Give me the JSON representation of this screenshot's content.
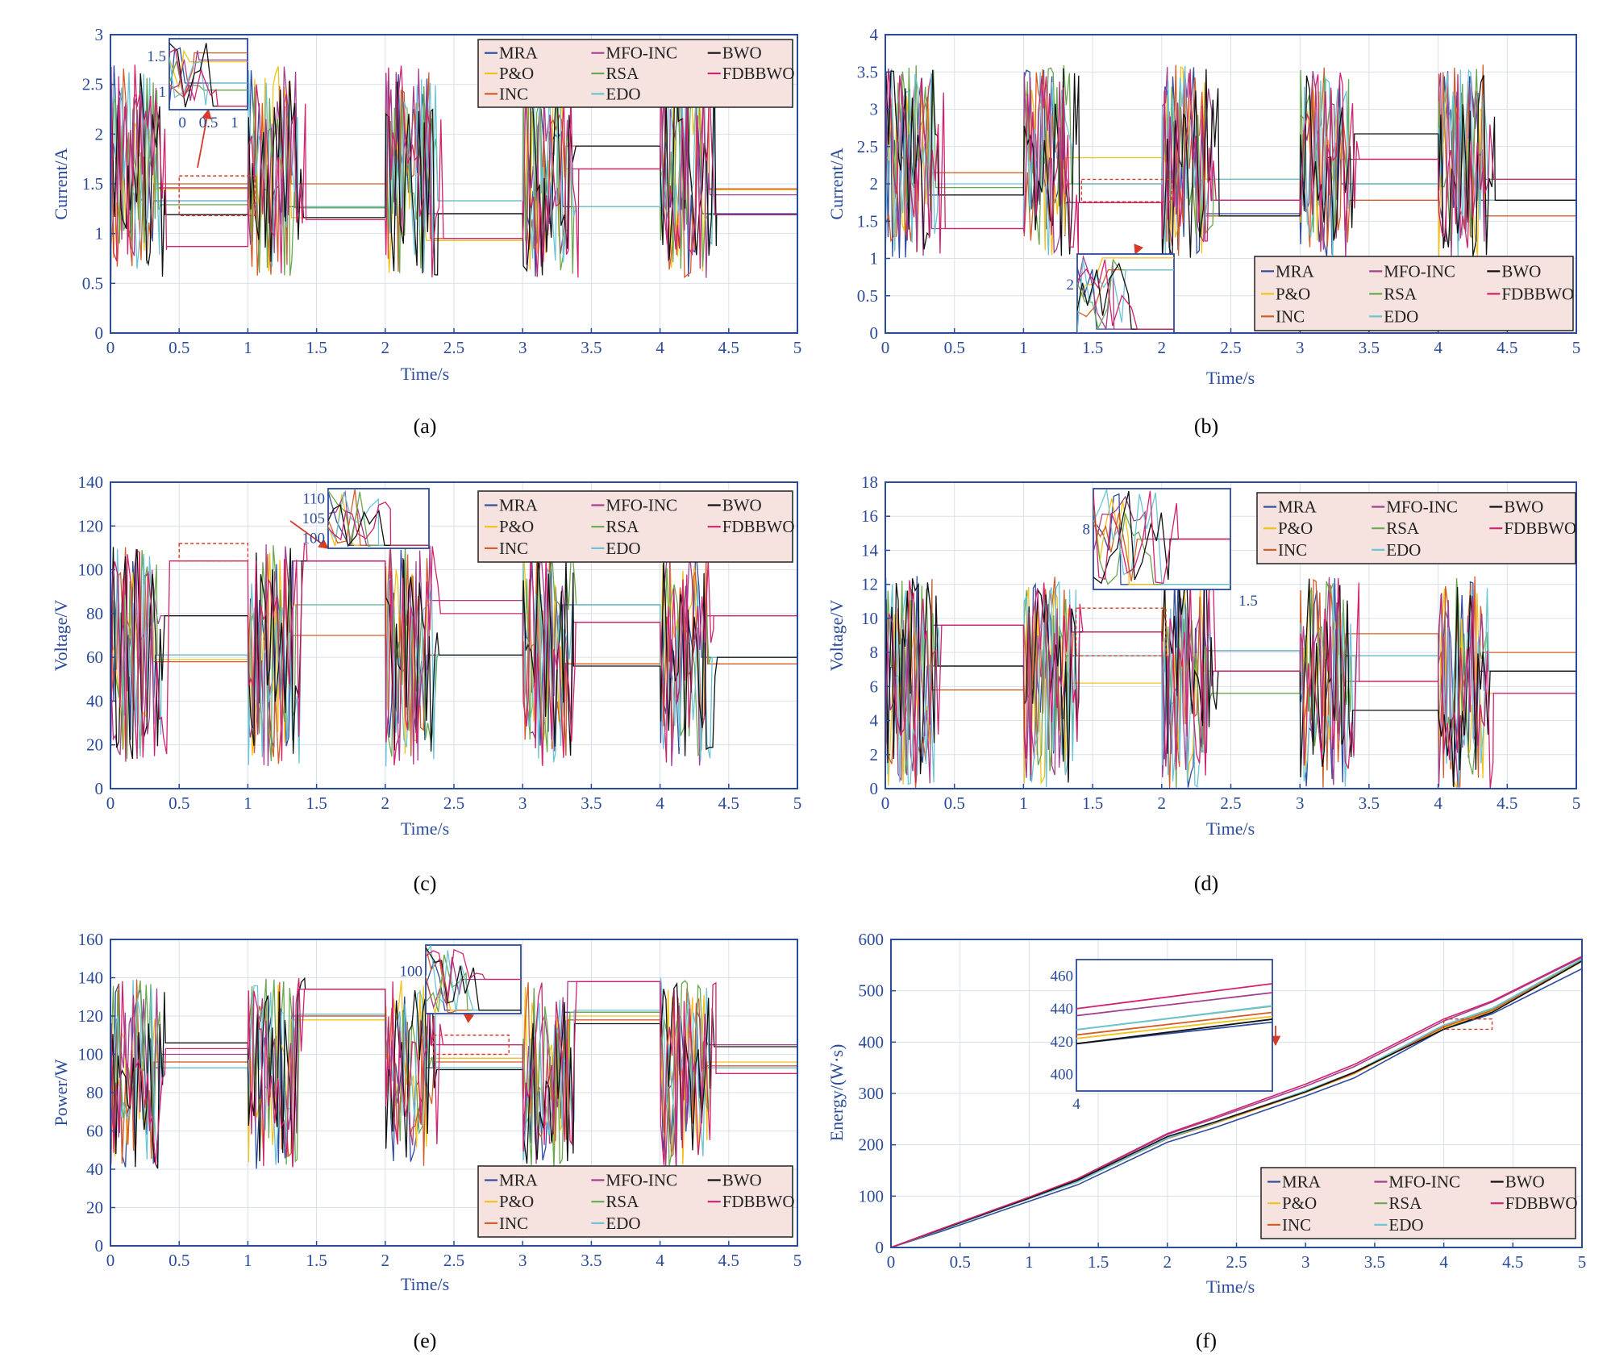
{
  "colors": {
    "axis": "#2a4a9a",
    "grid": "#d9e0ee",
    "legend_bg": "#f6e3df",
    "arrow": "#d83a28",
    "MRA": "#2f4c9e",
    "P&O": "#f2c21b",
    "INC": "#d35c27",
    "MFO-INC": "#a33f8f",
    "RSA": "#6aa84f",
    "EDO": "#6cc4d6",
    "BWO": "#111111",
    "FDBBWO": "#d1226f"
  },
  "legend": {
    "col1": [
      "MRA",
      "P&O",
      "INC"
    ],
    "col2": [
      "MFO-INC",
      "RSA",
      "EDO"
    ],
    "col3": [
      "BWO",
      "FDBBWO"
    ]
  },
  "chart_data": [
    {
      "id": "a",
      "caption": "(a)",
      "type": "line",
      "ylabel": "Current/A",
      "xlabel": "Time/s",
      "xlim": [
        0,
        5
      ],
      "ylim": [
        0,
        3
      ],
      "xticks": [
        "0",
        "0.5",
        "1",
        "1.5",
        "2",
        "2.5",
        "3",
        "3.5",
        "4",
        "4.5",
        "5"
      ],
      "yticks": [
        "0",
        "0.5",
        "1",
        "1.5",
        "2",
        "2.5",
        "3"
      ],
      "osc_range": [
        0.55,
        2.7
      ],
      "legend_pos": "top-right",
      "inset": {
        "xticks": [
          "0",
          "0.5",
          "1"
        ],
        "yticks": [
          "1",
          "1.5"
        ],
        "pos": "top-left"
      },
      "series": [
        {
          "name": "MRA",
          "steady": [
            1.33,
            1.27,
            1.2,
            1.27,
            1.2
          ]
        },
        {
          "name": "P&O",
          "steady": [
            1.45,
            1.16,
            0.93,
            1.65,
            1.44
          ]
        },
        {
          "name": "INC",
          "steady": [
            1.5,
            1.5,
            0.95,
            1.88,
            1.45
          ]
        },
        {
          "name": "MFO-INC",
          "steady": [
            1.46,
            1.26,
            1.2,
            1.65,
            1.39
          ]
        },
        {
          "name": "RSA",
          "steady": [
            1.29,
            1.26,
            1.33,
            1.27,
            1.19
          ]
        },
        {
          "name": "EDO",
          "steady": [
            1.33,
            1.27,
            1.33,
            1.27,
            1.19
          ]
        },
        {
          "name": "BWO",
          "steady": [
            1.19,
            1.16,
            1.2,
            1.88,
            1.19
          ]
        },
        {
          "name": "FDBBWO",
          "steady": [
            0.87,
            1.14,
            0.95,
            1.65,
            1.19
          ]
        }
      ]
    },
    {
      "id": "b",
      "caption": "(b)",
      "type": "line",
      "ylabel": "Current/A",
      "xlabel": "Time/s",
      "xlim": [
        0,
        5
      ],
      "ylim": [
        0,
        4
      ],
      "xticks": [
        "0",
        "0.5",
        "1",
        "1.5",
        "2",
        "2.5",
        "3",
        "3.5",
        "4",
        "4.5",
        "5"
      ],
      "yticks": [
        "0",
        "0.5",
        "1",
        "1.5",
        "2",
        "2.5",
        "3",
        "3.5",
        "4"
      ],
      "osc_range": [
        1.0,
        3.6
      ],
      "legend_pos": "bottom-right",
      "inset": {
        "xticks": [],
        "yticks": [
          "2"
        ],
        "pos": "bottom-center"
      },
      "series": [
        {
          "name": "MRA",
          "steady": [
            1.85,
            1.75,
            1.6,
            2.0,
            1.78
          ]
        },
        {
          "name": "P&O",
          "steady": [
            2.15,
            2.35,
            2.06,
            2.33,
            1.78
          ]
        },
        {
          "name": "INC",
          "steady": [
            2.15,
            2.0,
            1.57,
            1.78,
            1.57
          ]
        },
        {
          "name": "MFO-INC",
          "steady": [
            1.4,
            1.75,
            1.78,
            2.33,
            1.78
          ]
        },
        {
          "name": "RSA",
          "steady": [
            1.95,
            2.0,
            2.06,
            2.0,
            2.06
          ]
        },
        {
          "name": "EDO",
          "steady": [
            2.0,
            2.0,
            2.06,
            2.0,
            1.78
          ]
        },
        {
          "name": "BWO",
          "steady": [
            1.85,
            1.75,
            1.57,
            2.67,
            1.78
          ]
        },
        {
          "name": "FDBBWO",
          "steady": [
            1.4,
            1.75,
            1.78,
            2.33,
            2.06
          ]
        }
      ]
    },
    {
      "id": "c",
      "caption": "(c)",
      "type": "line",
      "ylabel": "Voltage/V",
      "xlabel": "Time/s",
      "xlim": [
        0,
        5
      ],
      "ylim": [
        0,
        140
      ],
      "xticks": [
        "0",
        "0.5",
        "1",
        "1.5",
        "2",
        "2.5",
        "3",
        "3.5",
        "4",
        "4.5",
        "5"
      ],
      "yticks": [
        "0",
        "20",
        "40",
        "60",
        "80",
        "100",
        "120",
        "140"
      ],
      "osc_range": [
        10,
        112
      ],
      "legend_pos": "top-right",
      "inset": {
        "xticks": [],
        "yticks": [
          "100",
          "105",
          "110"
        ],
        "pos": "top-center"
      },
      "series": [
        {
          "name": "MRA",
          "steady": [
            61,
            104,
            61,
            84,
            60
          ]
        },
        {
          "name": "P&O",
          "steady": [
            59,
            84,
            86,
            57,
            79
          ]
        },
        {
          "name": "INC",
          "steady": [
            58,
            70,
            61,
            57,
            57
          ]
        },
        {
          "name": "MFO-INC",
          "steady": [
            79,
            104,
            86,
            76,
            79
          ]
        },
        {
          "name": "RSA",
          "steady": [
            61,
            84,
            61,
            84,
            60
          ]
        },
        {
          "name": "EDO",
          "steady": [
            61,
            84,
            61,
            84,
            60
          ]
        },
        {
          "name": "BWO",
          "steady": [
            79,
            104,
            61,
            56,
            60
          ]
        },
        {
          "name": "FDBBWO",
          "steady": [
            104,
            104,
            80,
            76,
            79
          ]
        }
      ]
    },
    {
      "id": "d",
      "caption": "(d)",
      "type": "line",
      "ylabel": "Voltage/V",
      "xlabel": "Time/s",
      "xlim": [
        0,
        5
      ],
      "ylim": [
        0,
        18
      ],
      "xticks": [
        "0",
        "0.5",
        "1",
        "1.5",
        "2",
        "2.5",
        "3",
        "3.5",
        "4",
        "4.5",
        "5"
      ],
      "yticks": [
        "0",
        "2",
        "4",
        "6",
        "8",
        "10",
        "12",
        "14",
        "16",
        "18"
      ],
      "osc_range": [
        0,
        12.5
      ],
      "legend_pos": "top-right",
      "inset": {
        "xticks": [
          "1.5"
        ],
        "yticks": [
          "8"
        ],
        "pos": "top-center"
      },
      "series": [
        {
          "name": "MRA",
          "steady": [
            7.2,
            7.8,
            8.1,
            7.8,
            6.9
          ]
        },
        {
          "name": "P&O",
          "steady": [
            5.8,
            6.2,
            6.9,
            6.3,
            5.6
          ]
        },
        {
          "name": "INC",
          "steady": [
            5.8,
            9.2,
            8.1,
            9.1,
            8.0
          ]
        },
        {
          "name": "MFO-INC",
          "steady": [
            9.6,
            9.2,
            6.9,
            6.3,
            6.9
          ]
        },
        {
          "name": "RSA",
          "steady": [
            7.2,
            7.8,
            5.6,
            7.8,
            6.9
          ]
        },
        {
          "name": "EDO",
          "steady": [
            7.2,
            7.8,
            8.1,
            7.8,
            6.9
          ]
        },
        {
          "name": "BWO",
          "steady": [
            7.2,
            9.2,
            6.9,
            4.6,
            6.9
          ]
        },
        {
          "name": "FDBBWO",
          "steady": [
            9.6,
            9.2,
            6.9,
            6.3,
            5.6
          ]
        }
      ]
    },
    {
      "id": "e",
      "caption": "(e)",
      "type": "line",
      "ylabel": "Power/W",
      "xlabel": "Time/s",
      "xlim": [
        0,
        5
      ],
      "ylim": [
        0,
        160
      ],
      "xticks": [
        "0",
        "0.5",
        "1",
        "1.5",
        "2",
        "2.5",
        "3",
        "3.5",
        "4",
        "4.5",
        "5"
      ],
      "yticks": [
        "0",
        "20",
        "40",
        "60",
        "80",
        "100",
        "120",
        "140",
        "160"
      ],
      "osc_range": [
        40,
        140
      ],
      "legend_pos": "bottom-right",
      "inset": {
        "xticks": [],
        "yticks": [
          "100"
        ],
        "pos": "top-center"
      },
      "series": [
        {
          "name": "MRA",
          "steady": [
            93,
            120,
            93,
            122,
            93
          ]
        },
        {
          "name": "P&O",
          "steady": [
            96,
            118,
            98,
            120,
            96
          ]
        },
        {
          "name": "INC",
          "steady": [
            96,
            120,
            96,
            118,
            94
          ]
        },
        {
          "name": "MFO-INC",
          "steady": [
            100,
            134,
            105,
            138,
            105
          ]
        },
        {
          "name": "RSA",
          "steady": [
            93,
            121,
            93,
            122,
            93
          ]
        },
        {
          "name": "EDO",
          "steady": [
            93,
            121,
            93,
            123,
            93
          ]
        },
        {
          "name": "BWO",
          "steady": [
            106,
            134,
            92,
            116,
            104
          ]
        },
        {
          "name": "FDBBWO",
          "steady": [
            103,
            134,
            105,
            138,
            90
          ]
        }
      ]
    },
    {
      "id": "f",
      "caption": "(f)",
      "type": "line",
      "ylabel": "Energy/(W·s)",
      "xlabel": "Time/s",
      "xlim": [
        0,
        5
      ],
      "ylim": [
        0,
        600
      ],
      "xticks": [
        "0",
        "0.5",
        "1",
        "1.5",
        "2",
        "2.5",
        "3",
        "3.5",
        "4",
        "4.5",
        "5"
      ],
      "yticks": [
        "0",
        "100",
        "200",
        "300",
        "400",
        "500",
        "600"
      ],
      "legend_pos": "bottom-right",
      "inset": {
        "xticks": [
          "4"
        ],
        "yticks": [
          "400",
          "420",
          "440",
          "460"
        ],
        "pos": "top-left"
      },
      "x": [
        0,
        0.35,
        1,
        1.35,
        2,
        2.35,
        3,
        3.35,
        4,
        4.35,
        5
      ],
      "series": [
        {
          "name": "MRA",
          "values": [
            0,
            30,
            90,
            122,
            205,
            234,
            295,
            330,
            425,
            455,
            543
          ]
        },
        {
          "name": "P&O",
          "values": [
            0,
            33,
            95,
            128,
            212,
            242,
            302,
            338,
            428,
            460,
            557
          ]
        },
        {
          "name": "INC",
          "values": [
            0,
            33,
            95,
            128,
            212,
            243,
            303,
            339,
            430,
            462,
            558
          ]
        },
        {
          "name": "MFO-INC",
          "values": [
            0,
            35,
            98,
            133,
            220,
            252,
            314,
            352,
            441,
            478,
            565
          ]
        },
        {
          "name": "RSA",
          "values": [
            0,
            33,
            95,
            128,
            213,
            244,
            305,
            341,
            433,
            465,
            561
          ]
        },
        {
          "name": "EDO",
          "values": [
            0,
            33,
            95,
            128,
            213,
            244,
            305,
            341,
            433,
            466,
            562
          ]
        },
        {
          "name": "BWO",
          "values": [
            0,
            34,
            96,
            131,
            216,
            245,
            303,
            341,
            425,
            458,
            558
          ]
        },
        {
          "name": "FDBBWO",
          "values": [
            0,
            35,
            98,
            134,
            222,
            255,
            318,
            356,
            445,
            480,
            567
          ]
        }
      ]
    }
  ]
}
